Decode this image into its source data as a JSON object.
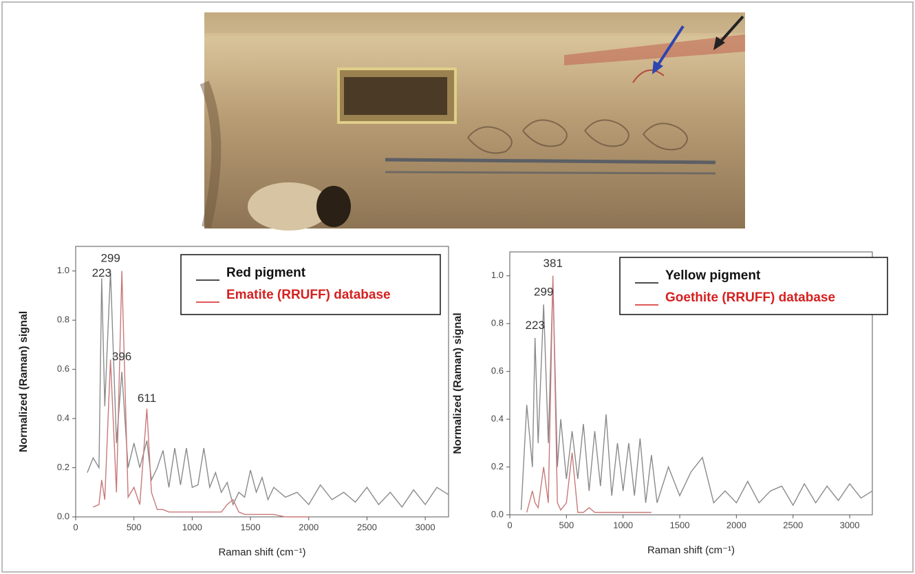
{
  "chart_data": [
    {
      "type": "line",
      "x_label": "Raman shift (cm⁻¹)",
      "y_label": "Normalized (Raman) signal",
      "x": [
        100,
        150,
        200,
        223,
        250,
        299,
        350,
        396,
        450,
        500,
        550,
        611,
        650,
        700,
        750,
        800,
        850,
        900,
        950,
        1000,
        1050,
        1100,
        1150,
        1200,
        1250,
        1300,
        1350,
        1400,
        1450,
        1500,
        1550,
        1600,
        1650,
        1700,
        1800,
        1900,
        2000,
        2100,
        2200,
        2300,
        2400,
        2500,
        2600,
        2700,
        2800,
        2900,
        3000,
        3100,
        3200
      ],
      "series": [
        {
          "name": "Red pigment",
          "color": "#8a8a8a",
          "values": [
            0.18,
            0.24,
            0.2,
            0.97,
            0.45,
            1.0,
            0.3,
            0.59,
            0.2,
            0.3,
            0.2,
            0.31,
            0.15,
            0.2,
            0.27,
            0.12,
            0.28,
            0.13,
            0.28,
            0.12,
            0.13,
            0.28,
            0.12,
            0.18,
            0.1,
            0.14,
            0.05,
            0.1,
            0.08,
            0.19,
            0.1,
            0.16,
            0.07,
            0.12,
            0.08,
            0.1,
            0.05,
            0.13,
            0.07,
            0.1,
            0.06,
            0.12,
            0.05,
            0.1,
            0.04,
            0.11,
            0.05,
            0.12,
            0.09
          ]
        },
        {
          "name": "Ematite (RRUFF) database",
          "color": "#c97878",
          "values": [
            null,
            0.04,
            0.05,
            0.15,
            0.07,
            0.64,
            0.1,
            1.0,
            0.08,
            0.12,
            0.05,
            0.44,
            0.1,
            0.03,
            0.03,
            0.02,
            0.02,
            0.02,
            0.02,
            0.02,
            0.02,
            0.02,
            0.02,
            0.02,
            0.02,
            0.05,
            0.07,
            0.02,
            0.01,
            0.01,
            0.01,
            0.01,
            0.01,
            0.01,
            0.0,
            0.0,
            0.0,
            null,
            null,
            null,
            null,
            null,
            null,
            null,
            null,
            null,
            null,
            null,
            null
          ]
        }
      ],
      "annotations": [
        {
          "label": "223",
          "x": 223,
          "y": 0.99
        },
        {
          "label": "299",
          "x": 299,
          "y": 1.05
        },
        {
          "label": "396",
          "x": 396,
          "y": 0.65
        },
        {
          "label": "611",
          "x": 611,
          "y": 0.48
        }
      ],
      "xlim": [
        0,
        3200
      ],
      "xticks": [
        0,
        500,
        1000,
        1500,
        2000,
        2500,
        3000
      ],
      "ylim": [
        0,
        1.1
      ],
      "yticks": [
        {
          "value": 0,
          "label": "0.0"
        },
        {
          "value": 0.2,
          "label": "0.2"
        },
        {
          "value": 0.4,
          "label": "0.4"
        },
        {
          "value": 0.6,
          "label": "0.6"
        },
        {
          "value": 0.8,
          "label": "0.8"
        },
        {
          "value": 1,
          "label": "1.0"
        }
      ],
      "legend": "upper right"
    },
    {
      "type": "line",
      "x_label": "Raman shift (cm⁻¹)",
      "y_label": "Normalized (Raman) signal",
      "x": [
        100,
        150,
        200,
        223,
        250,
        299,
        340,
        381,
        420,
        450,
        500,
        550,
        600,
        650,
        700,
        750,
        800,
        850,
        900,
        950,
        1000,
        1050,
        1100,
        1150,
        1200,
        1250,
        1300,
        1400,
        1500,
        1600,
        1700,
        1800,
        1900,
        2000,
        2100,
        2200,
        2300,
        2400,
        2500,
        2600,
        2700,
        2800,
        2900,
        3000,
        3100,
        3200
      ],
      "series": [
        {
          "name": "Yellow pigment",
          "color": "#8a8a8a",
          "values": [
            0.02,
            0.46,
            0.2,
            0.74,
            0.3,
            0.88,
            0.3,
            0.98,
            0.2,
            0.4,
            0.15,
            0.35,
            0.15,
            0.38,
            0.1,
            0.35,
            0.12,
            0.42,
            0.08,
            0.3,
            0.1,
            0.3,
            0.08,
            0.32,
            0.05,
            0.25,
            0.05,
            0.2,
            0.08,
            0.18,
            0.24,
            0.05,
            0.1,
            0.05,
            0.14,
            0.05,
            0.1,
            0.12,
            0.04,
            0.13,
            0.05,
            0.12,
            0.06,
            0.13,
            0.07,
            0.1
          ]
        },
        {
          "name": "Goethite (RRUFF) database",
          "color": "#c97878",
          "values": [
            null,
            0.01,
            0.1,
            0.05,
            0.03,
            0.2,
            0.05,
            1.0,
            0.05,
            0.02,
            0.05,
            0.26,
            0.01,
            0.01,
            0.03,
            0.01,
            0.01,
            0.01,
            0.01,
            0.01,
            0.01,
            0.01,
            0.01,
            0.01,
            0.01,
            0.01,
            null,
            null,
            null,
            null,
            null,
            null,
            null,
            null,
            null,
            null,
            null,
            null,
            null,
            null,
            null,
            null,
            null,
            null,
            null,
            null
          ]
        }
      ],
      "annotations": [
        {
          "label": "223",
          "x": 223,
          "y": 0.79
        },
        {
          "label": "299",
          "x": 299,
          "y": 0.93
        },
        {
          "label": "381",
          "x": 381,
          "y": 1.05
        }
      ],
      "xlim": [
        0,
        3200
      ],
      "xticks": [
        0,
        500,
        1000,
        1500,
        2000,
        2500,
        3000
      ],
      "ylim": [
        0,
        1.1
      ],
      "yticks": [
        {
          "value": 0,
          "label": "0.0"
        },
        {
          "value": 0.2,
          "label": "0.2"
        },
        {
          "value": 0.4,
          "label": "0.4"
        },
        {
          "value": 0.6,
          "label": "0.6"
        },
        {
          "value": 0.8,
          "label": "0.8"
        },
        {
          "value": 1,
          "label": "1.0"
        }
      ],
      "legend": "upper right"
    }
  ]
}
